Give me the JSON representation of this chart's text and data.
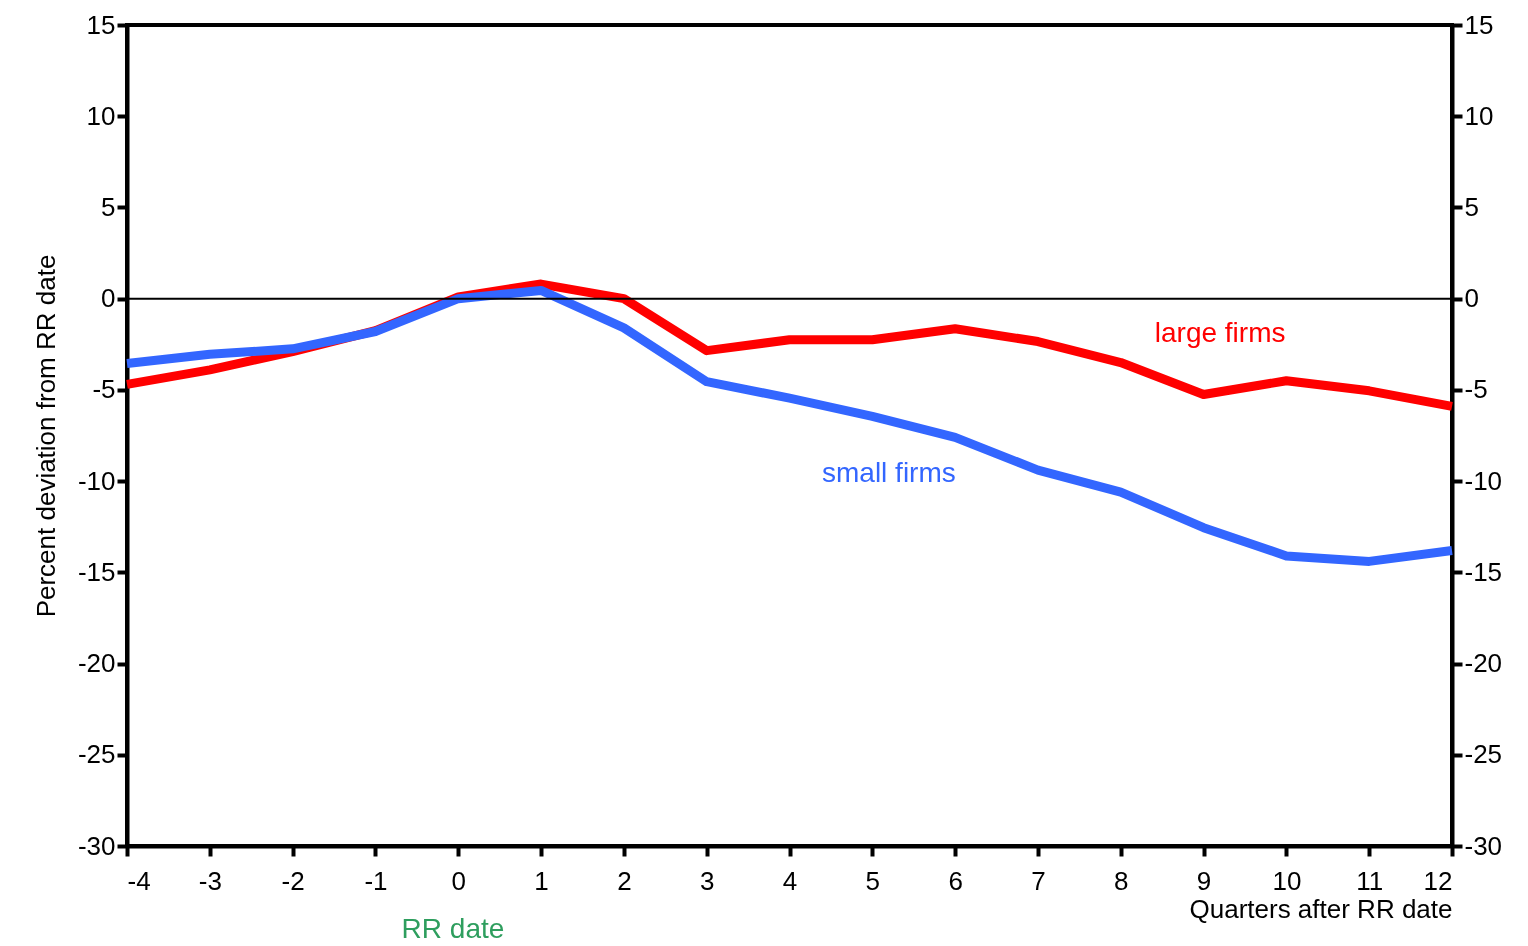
{
  "chart_data": {
    "type": "line",
    "ylabel": "Percent  deviation  from  RR  date",
    "xlabel": "Quarters  after  RR  date",
    "x": [
      -4,
      -3,
      -2,
      -1,
      0,
      1,
      2,
      3,
      4,
      5,
      6,
      7,
      8,
      9,
      10,
      11,
      12
    ],
    "series": [
      {
        "name": "large firms",
        "color": "#ff0000",
        "values": [
          -4.7,
          -3.9,
          -2.9,
          -1.75,
          0.1,
          0.8,
          0,
          -2.85,
          -2.25,
          -2.25,
          -1.65,
          -2.35,
          -3.5,
          -5.25,
          -4.5,
          -5.05,
          -5.9
        ]
      },
      {
        "name": "small firms",
        "color": "#3366ff",
        "values": [
          -3.55,
          -3.05,
          -2.75,
          -1.8,
          0,
          0.45,
          -1.6,
          -4.55,
          -5.45,
          -6.45,
          -7.6,
          -9.4,
          -10.6,
          -12.55,
          -14.1,
          -14.4,
          -13.8
        ]
      }
    ],
    "xlim": [
      -4,
      12
    ],
    "xticks": [
      -4,
      -3,
      -2,
      -1,
      0,
      1,
      2,
      3,
      4,
      5,
      6,
      7,
      8,
      9,
      10,
      11,
      12
    ],
    "ylim": [
      -30,
      15
    ],
    "yticks": [
      -30,
      -25,
      -20,
      -15,
      -10,
      -5,
      0,
      5,
      10,
      15
    ],
    "y2lim": [
      -30,
      15
    ],
    "y2ticks": [
      -30,
      -25,
      -20,
      -15,
      -10,
      -5,
      0,
      5,
      10,
      15
    ],
    "ref_lines": [
      {
        "axis": "y",
        "value": 0,
        "color": "#000000"
      }
    ],
    "annotations": [
      "RR date"
    ],
    "grid": false,
    "legend": false,
    "marker": "none",
    "line_style": "solid"
  }
}
